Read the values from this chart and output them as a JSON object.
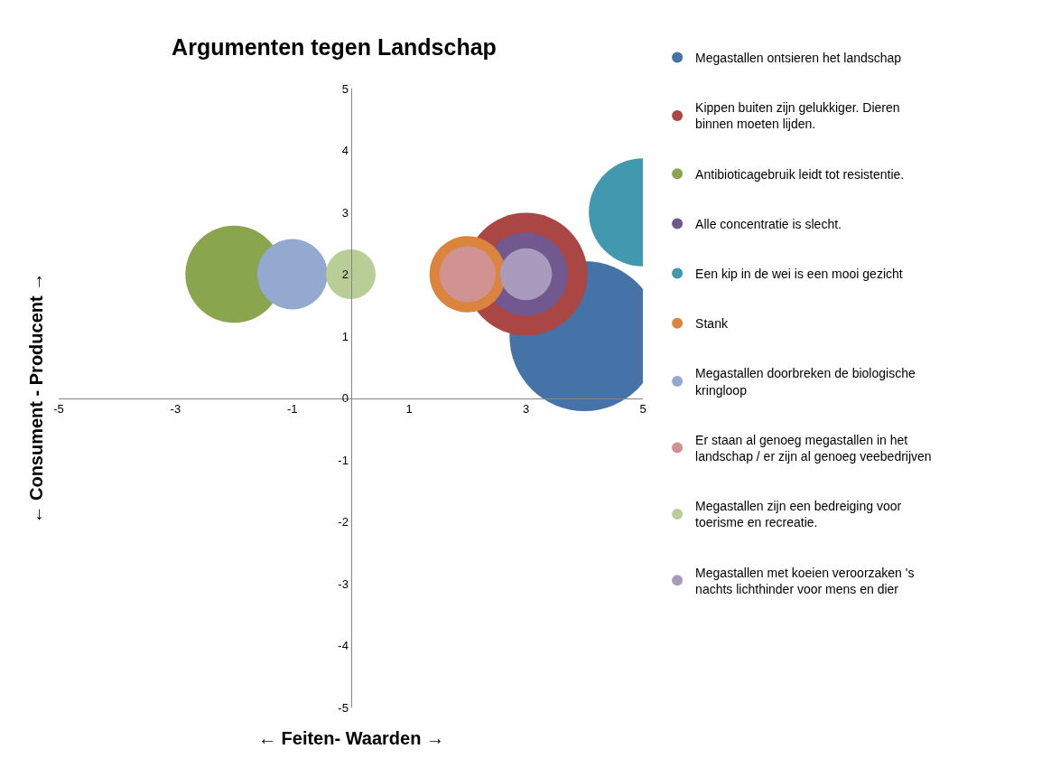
{
  "chart_data": {
    "type": "bubble",
    "title": "Argumenten tegen Landschap",
    "xlabel": "← Feiten- Waarden →",
    "ylabel": "← Consument - Producent →",
    "xlim": [
      -5,
      5
    ],
    "xticks": [
      -5,
      -3,
      -1,
      1,
      3,
      5
    ],
    "ylim": [
      -5,
      5
    ],
    "yticks": [
      -5,
      -4,
      -3,
      -2,
      -1,
      0,
      1,
      2,
      3,
      4,
      5
    ],
    "legend": "right",
    "series": [
      {
        "name": "Megastallen ontsieren het landschap",
        "color": "#4572a7",
        "x": [
          4
        ],
        "values": [
          1
        ],
        "sizes": [
          1
        ]
      },
      {
        "name": "Kippen buiten zijn gelukkiger. Dieren binnen moeten lijden.",
        "color": "#aa4643",
        "x": [
          3
        ],
        "values": [
          2
        ],
        "sizes": [
          0.67
        ]
      },
      {
        "name": "Antibioticagebruik leidt tot resistentie.",
        "color": "#89a54e",
        "x": [
          -2
        ],
        "values": [
          2
        ],
        "sizes": [
          0.42
        ]
      },
      {
        "name": "Alle concentratie is slecht.",
        "color": "#71588f",
        "x": [
          3
        ],
        "values": [
          2
        ],
        "sizes": [
          0.31
        ]
      },
      {
        "name": "Een kip in de wei is een mooi gezicht",
        "color": "#4198af",
        "x": [
          5
        ],
        "values": [
          3
        ],
        "sizes": [
          0.52
        ]
      },
      {
        "name": "Stank",
        "color": "#db843d",
        "x": [
          2
        ],
        "values": [
          2
        ],
        "sizes": [
          0.26
        ]
      },
      {
        "name": "Megastallen doorbreken de biologische kringloop",
        "color": "#93a9cf",
        "x": [
          -1
        ],
        "values": [
          2
        ],
        "sizes": [
          0.22
        ]
      },
      {
        "name": "Er staan al genoeg megastallen in het landschap / er zijn al genoeg veebedrijven",
        "color": "#d19392",
        "x": [
          2
        ],
        "values": [
          2
        ],
        "sizes": [
          0.14
        ]
      },
      {
        "name": "Megastallen zijn een bedreiging voor toerisme en recreatie.",
        "color": "#b9cd96",
        "x": [
          0
        ],
        "values": [
          2
        ],
        "sizes": [
          0.11
        ]
      },
      {
        "name": "Megastallen met koeien veroorzaken 's nachts lichthinder voor mens en dier",
        "color": "#a99bbd",
        "x": [
          3
        ],
        "values": [
          2
        ],
        "sizes": [
          0.12
        ]
      }
    ]
  }
}
